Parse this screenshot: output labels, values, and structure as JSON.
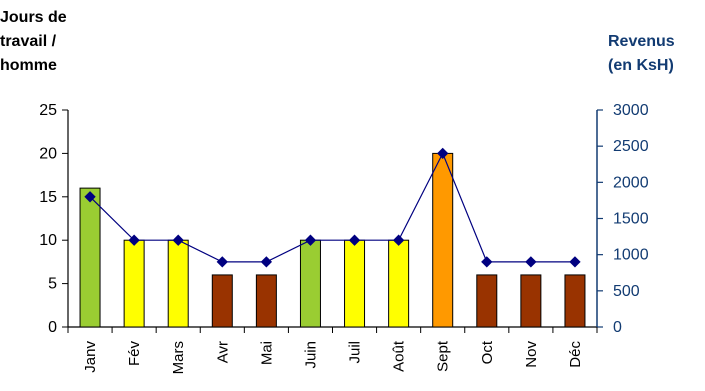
{
  "chart_data": {
    "type": "bar",
    "categories": [
      "Janv",
      "Fév",
      "Mars",
      "Avr",
      "Mai",
      "Juin",
      "Juil",
      "Août",
      "Sept",
      "Oct",
      "Nov",
      "Déc"
    ],
    "left_axis_label": [
      "Jours de",
      "travail /",
      "homme"
    ],
    "right_axis_label": [
      "Revenus",
      "(en KsH)"
    ],
    "series": [
      {
        "values": [
          16,
          10,
          10,
          6,
          6,
          10,
          10,
          10,
          20,
          6,
          6,
          6
        ],
        "bar_colors": [
          "#9acd32",
          "#ffff00",
          "#ffff00",
          "#993300",
          "#993300",
          "#9acd32",
          "#ffff00",
          "#ffff00",
          "#ff9900",
          "#993300",
          "#993300",
          "#993300"
        ],
        "axis": "left",
        "chart_type": "bar"
      },
      {
        "values": [
          1800,
          1200,
          1200,
          900,
          900,
          1200,
          1200,
          1200,
          2400,
          900,
          900,
          900
        ],
        "color": "#000080",
        "axis": "right",
        "chart_type": "line"
      }
    ],
    "ylim": [
      0,
      25
    ],
    "yticks": [
      0,
      5,
      10,
      15,
      20,
      25
    ],
    "y2lim": [
      0,
      3000
    ],
    "y2ticks": [
      0,
      500,
      1000,
      1500,
      2000,
      2500,
      3000
    ],
    "right_axis_color": "#123b72",
    "grid": false,
    "legend": "none"
  }
}
